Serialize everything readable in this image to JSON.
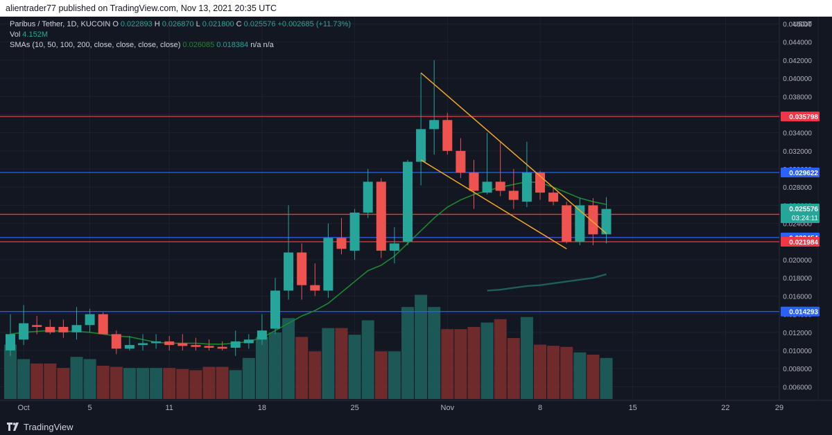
{
  "header": {
    "publish_text": "alientrader77 published on TradingView.com, Nov 13, 2021 20:35 UTC"
  },
  "legend": {
    "pair": "Paribus / Tether, 1D, KUCOIN",
    "o_label": "O",
    "o_value": "0.022893",
    "h_label": "H",
    "h_value": "0.026870",
    "l_label": "L",
    "l_value": "0.021800",
    "c_label": "C",
    "c_value": "0.025576",
    "change": "+0.002685 (+11.73%)",
    "vol_label": "Vol",
    "vol_value": "4.152M",
    "sma_label": "SMAs (10, 50, 100, 200, close, close, close, close)",
    "sma10": "0.026085",
    "sma50": "0.018384",
    "sma100": "n/a",
    "sma200": "n/a"
  },
  "footer": {
    "brand": "TradingView"
  },
  "colors": {
    "bull": "#26a69a",
    "bear": "#ef5350",
    "bull_vol": "#1e5f5c",
    "bear_vol": "#7a2e2e",
    "red_line": "#f23645",
    "blue_line": "#2962ff",
    "triangle": "#f5a623",
    "sma10": "#1b8a2e",
    "sma50": "#1e5f5c"
  },
  "chart_data": {
    "type": "candlestick",
    "x_tick_labels": [
      "Oct",
      "5",
      "11",
      "18",
      "25",
      "Nov",
      "8",
      "15",
      "22",
      "29"
    ],
    "y_ticks": [
      "0.046000",
      "0.044000",
      "0.042000",
      "0.040000",
      "0.038000",
      "0.036000",
      "0.034000",
      "0.032000",
      "0.030000",
      "0.028000",
      "0.026000",
      "0.024000",
      "0.022000",
      "0.020000",
      "0.018000",
      "0.016000",
      "0.014000",
      "0.012000",
      "0.010000",
      "0.008000",
      "0.006000"
    ],
    "y_unit": "USDT",
    "ylim": [
      0.0045,
      0.0468
    ],
    "price_lines": [
      {
        "value": 0.035798,
        "label": "0.035798",
        "color": "red"
      },
      {
        "value": 0.029622,
        "label": "0.029622",
        "color": "blue"
      },
      {
        "value": 0.025007,
        "label": "0.025007",
        "color": "red"
      },
      {
        "value": 0.022454,
        "label": "0.022454",
        "color": "blue"
      },
      {
        "value": 0.021984,
        "label": "0.021984",
        "color": "red"
      },
      {
        "value": 0.014293,
        "label": "0.014293",
        "color": "blue"
      }
    ],
    "last_price": {
      "value": 0.025576,
      "label": "0.025576",
      "countdown": "03:24:11"
    },
    "candles": [
      {
        "d": "Sep 30",
        "o": 0.01,
        "h": 0.014,
        "l": 0.0094,
        "c": 0.0118
      },
      {
        "d": "Oct 1",
        "o": 0.0112,
        "h": 0.015,
        "l": 0.0106,
        "c": 0.013
      },
      {
        "d": "Oct 2",
        "o": 0.0128,
        "h": 0.0138,
        "l": 0.0118,
        "c": 0.0126
      },
      {
        "d": "Oct 3",
        "o": 0.0126,
        "h": 0.0134,
        "l": 0.0118,
        "c": 0.012
      },
      {
        "d": "Oct 4",
        "o": 0.0126,
        "h": 0.0134,
        "l": 0.0114,
        "c": 0.012
      },
      {
        "d": "Oct 5",
        "o": 0.012,
        "h": 0.0148,
        "l": 0.0112,
        "c": 0.0128
      },
      {
        "d": "Oct 6",
        "o": 0.0128,
        "h": 0.0146,
        "l": 0.012,
        "c": 0.014
      },
      {
        "d": "Oct 7",
        "o": 0.014,
        "h": 0.0142,
        "l": 0.0118,
        "c": 0.0118
      },
      {
        "d": "Oct 8",
        "o": 0.0118,
        "h": 0.0122,
        "l": 0.0096,
        "c": 0.0102
      },
      {
        "d": "Oct 9",
        "o": 0.0102,
        "h": 0.0116,
        "l": 0.01,
        "c": 0.0106
      },
      {
        "d": "Oct 10",
        "o": 0.0106,
        "h": 0.0118,
        "l": 0.01,
        "c": 0.0108
      },
      {
        "d": "Oct 11",
        "o": 0.0108,
        "h": 0.0118,
        "l": 0.0102,
        "c": 0.011
      },
      {
        "d": "Oct 12",
        "o": 0.011,
        "h": 0.0116,
        "l": 0.01,
        "c": 0.0106
      },
      {
        "d": "Oct 13",
        "o": 0.0108,
        "h": 0.0118,
        "l": 0.01,
        "c": 0.0105
      },
      {
        "d": "Oct 14",
        "o": 0.0106,
        "h": 0.0114,
        "l": 0.01,
        "c": 0.0104
      },
      {
        "d": "Oct 15",
        "o": 0.0105,
        "h": 0.0112,
        "l": 0.01,
        "c": 0.0103
      },
      {
        "d": "Oct 16",
        "o": 0.0104,
        "h": 0.011,
        "l": 0.01,
        "c": 0.0102
      },
      {
        "d": "Oct 17",
        "o": 0.0103,
        "h": 0.0122,
        "l": 0.0094,
        "c": 0.011
      },
      {
        "d": "Oct 18",
        "o": 0.0108,
        "h": 0.0118,
        "l": 0.0102,
        "c": 0.0112
      },
      {
        "d": "Oct 19",
        "o": 0.0112,
        "h": 0.014,
        "l": 0.0106,
        "c": 0.0122
      },
      {
        "d": "Oct 20",
        "o": 0.0124,
        "h": 0.018,
        "l": 0.0118,
        "c": 0.0166
      },
      {
        "d": "Oct 21",
        "o": 0.0166,
        "h": 0.026,
        "l": 0.0156,
        "c": 0.0208
      },
      {
        "d": "Oct 22",
        "o": 0.0208,
        "h": 0.0218,
        "l": 0.0156,
        "c": 0.0172
      },
      {
        "d": "Oct 23",
        "o": 0.0172,
        "h": 0.0196,
        "l": 0.016,
        "c": 0.0166
      },
      {
        "d": "Oct 24",
        "o": 0.0166,
        "h": 0.024,
        "l": 0.0158,
        "c": 0.0224
      },
      {
        "d": "Oct 25",
        "o": 0.0224,
        "h": 0.0246,
        "l": 0.0206,
        "c": 0.0212
      },
      {
        "d": "Oct 26",
        "o": 0.021,
        "h": 0.0256,
        "l": 0.02,
        "c": 0.0252
      },
      {
        "d": "Oct 27",
        "o": 0.0252,
        "h": 0.03,
        "l": 0.0246,
        "c": 0.0286
      },
      {
        "d": "Oct 28",
        "o": 0.0286,
        "h": 0.029,
        "l": 0.0202,
        "c": 0.021
      },
      {
        "d": "Oct 29",
        "o": 0.021,
        "h": 0.0236,
        "l": 0.0196,
        "c": 0.0218
      },
      {
        "d": "Oct 30",
        "o": 0.022,
        "h": 0.031,
        "l": 0.0216,
        "c": 0.0308
      },
      {
        "d": "Oct 31",
        "o": 0.0308,
        "h": 0.0406,
        "l": 0.0282,
        "c": 0.0344
      },
      {
        "d": "Nov 1",
        "o": 0.0344,
        "h": 0.042,
        "l": 0.0316,
        "c": 0.0354
      },
      {
        "d": "Nov 2",
        "o": 0.0354,
        "h": 0.0362,
        "l": 0.0316,
        "c": 0.032
      },
      {
        "d": "Nov 3",
        "o": 0.032,
        "h": 0.0334,
        "l": 0.029,
        "c": 0.0296
      },
      {
        "d": "Nov 4",
        "o": 0.0296,
        "h": 0.031,
        "l": 0.0256,
        "c": 0.0276
      },
      {
        "d": "Nov 5",
        "o": 0.0274,
        "h": 0.034,
        "l": 0.0272,
        "c": 0.0286
      },
      {
        "d": "Nov 6",
        "o": 0.0286,
        "h": 0.033,
        "l": 0.027,
        "c": 0.0276
      },
      {
        "d": "Nov 7",
        "o": 0.0276,
        "h": 0.03,
        "l": 0.0256,
        "c": 0.0266
      },
      {
        "d": "Nov 8",
        "o": 0.0264,
        "h": 0.033,
        "l": 0.0258,
        "c": 0.0296
      },
      {
        "d": "Nov 9",
        "o": 0.0296,
        "h": 0.0298,
        "l": 0.0266,
        "c": 0.0274
      },
      {
        "d": "Nov 10",
        "o": 0.0274,
        "h": 0.028,
        "l": 0.026,
        "c": 0.0264
      },
      {
        "d": "Nov 11",
        "o": 0.026,
        "h": 0.0264,
        "l": 0.0218,
        "c": 0.022
      },
      {
        "d": "Nov 12",
        "o": 0.022,
        "h": 0.0268,
        "l": 0.0216,
        "c": 0.026
      },
      {
        "d": "Nov 13",
        "o": 0.026,
        "h": 0.0268,
        "l": 0.0216,
        "c": 0.0228
      },
      {
        "d": "Nov 14",
        "o": 0.0228,
        "h": 0.0269,
        "l": 0.0218,
        "c": 0.0256
      }
    ],
    "volume_rel": [
      0.49,
      0.36,
      0.32,
      0.32,
      0.28,
      0.38,
      0.36,
      0.3,
      0.29,
      0.28,
      0.28,
      0.28,
      0.28,
      0.27,
      0.26,
      0.29,
      0.29,
      0.26,
      0.37,
      0.56,
      0.6,
      0.73,
      0.56,
      0.43,
      0.64,
      0.64,
      0.58,
      0.71,
      0.43,
      0.43,
      0.83,
      0.94,
      0.83,
      0.63,
      0.63,
      0.65,
      0.69,
      0.72,
      0.55,
      0.74,
      0.49,
      0.48,
      0.47,
      0.42,
      0.4,
      0.37
    ],
    "sma10": [
      0.0118,
      0.012,
      0.0121,
      0.0122,
      0.0121,
      0.0121,
      0.012,
      0.0118,
      0.0116,
      0.0115,
      0.0112,
      0.0109,
      0.0108,
      0.0108,
      0.0108,
      0.0107,
      0.0107,
      0.0108,
      0.011,
      0.0114,
      0.0122,
      0.013,
      0.0138,
      0.0144,
      0.0152,
      0.0164,
      0.0176,
      0.0188,
      0.0194,
      0.0204,
      0.0218,
      0.0232,
      0.0246,
      0.0258,
      0.0266,
      0.0272,
      0.0276,
      0.028,
      0.0283,
      0.0286,
      0.0285,
      0.028,
      0.0274,
      0.0268,
      0.0264,
      0.0261
    ],
    "sma50": [
      0.0166,
      0.0167,
      0.0169,
      0.0171,
      0.0172,
      0.0174,
      0.0176,
      0.0178,
      0.018,
      0.0184
    ],
    "triangle": {
      "upper": [
        {
          "i": 31,
          "v": 0.0406
        },
        {
          "i": 45,
          "v": 0.0229
        }
      ],
      "lower": [
        {
          "i": 31,
          "v": 0.031
        },
        {
          "i": 42,
          "v": 0.0212
        }
      ]
    }
  }
}
